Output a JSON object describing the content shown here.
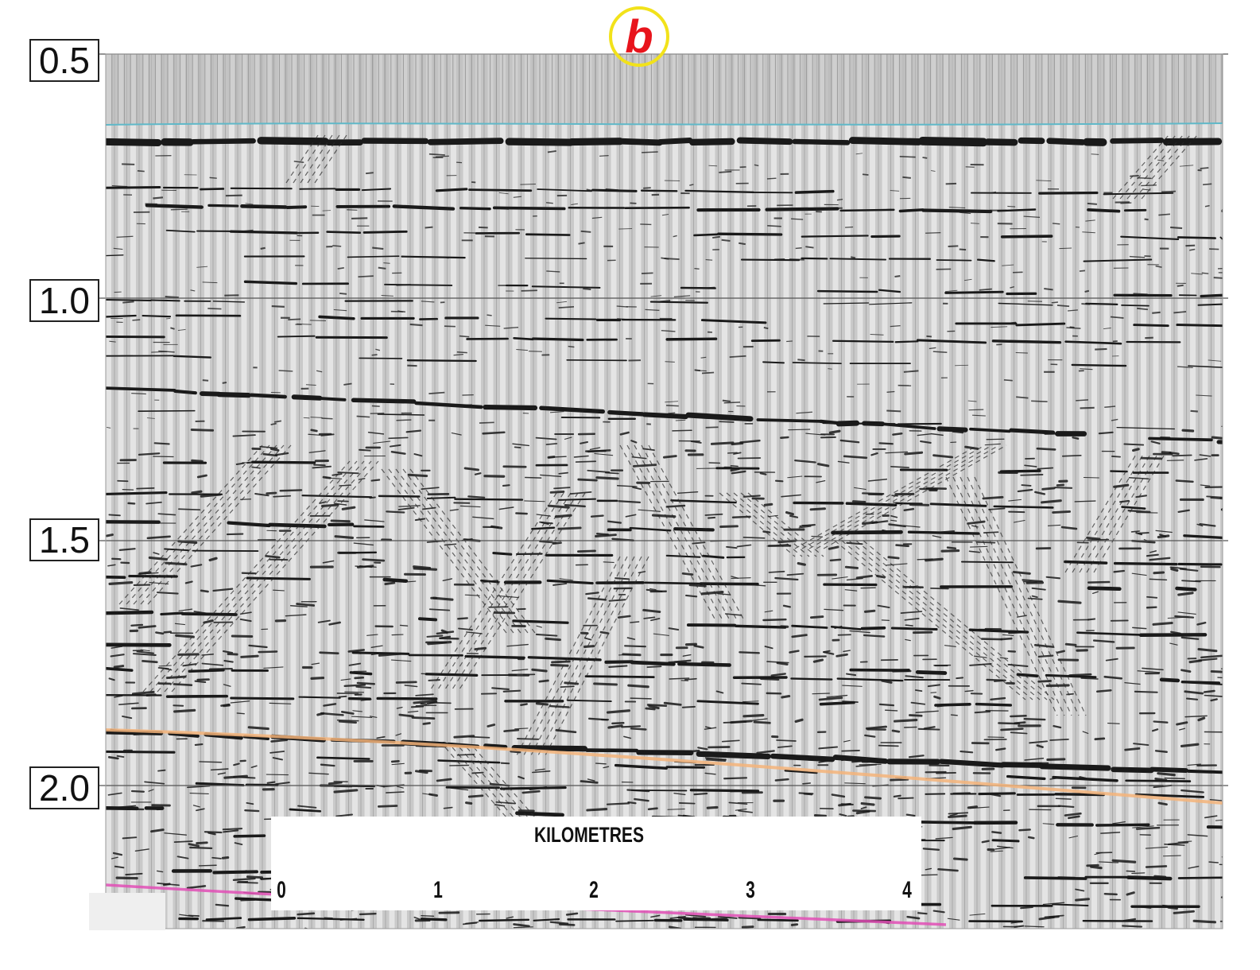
{
  "marker": {
    "label": "b",
    "ring_color": "#f2e21a",
    "text_color": "#e8141c"
  },
  "time_axis": {
    "labels": [
      "0.5",
      "1.0",
      "1.5",
      "2.0"
    ]
  },
  "scale_bar": {
    "title": "KILOMETRES",
    "ticks": [
      "0",
      "1",
      "2",
      "3",
      "4"
    ]
  },
  "colors": {
    "background": "#c9c9c9",
    "reflector": "#1a1a1a",
    "seafloor_pick": "#5fb8c8",
    "horizon_orange": "#f5b47a",
    "horizon_pink": "#e24fb6"
  }
}
